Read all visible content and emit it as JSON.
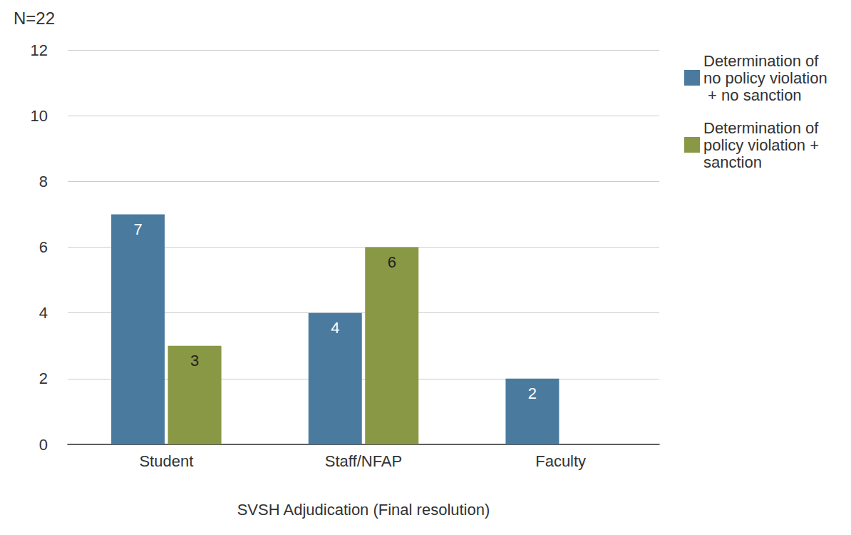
{
  "chart_data": {
    "type": "bar",
    "title": "N=22",
    "x_label": "SVSH Adjudication (Final resolution)",
    "categories": [
      "Student",
      "Staff/NFAP",
      "Faculty"
    ],
    "series": [
      {
        "name": "Determination of no policy violation + no sanction",
        "color": "#4a7b9f",
        "values": [
          7,
          4,
          2
        ]
      },
      {
        "name": "Determination of policy violation + sanction",
        "color": "#899845",
        "values": [
          3,
          6,
          null
        ]
      }
    ],
    "ylim": [
      0,
      12
    ],
    "yticks": [
      0,
      2,
      4,
      6,
      8,
      10,
      12
    ],
    "grid": true,
    "legend": "upper right",
    "data_labels": true
  }
}
